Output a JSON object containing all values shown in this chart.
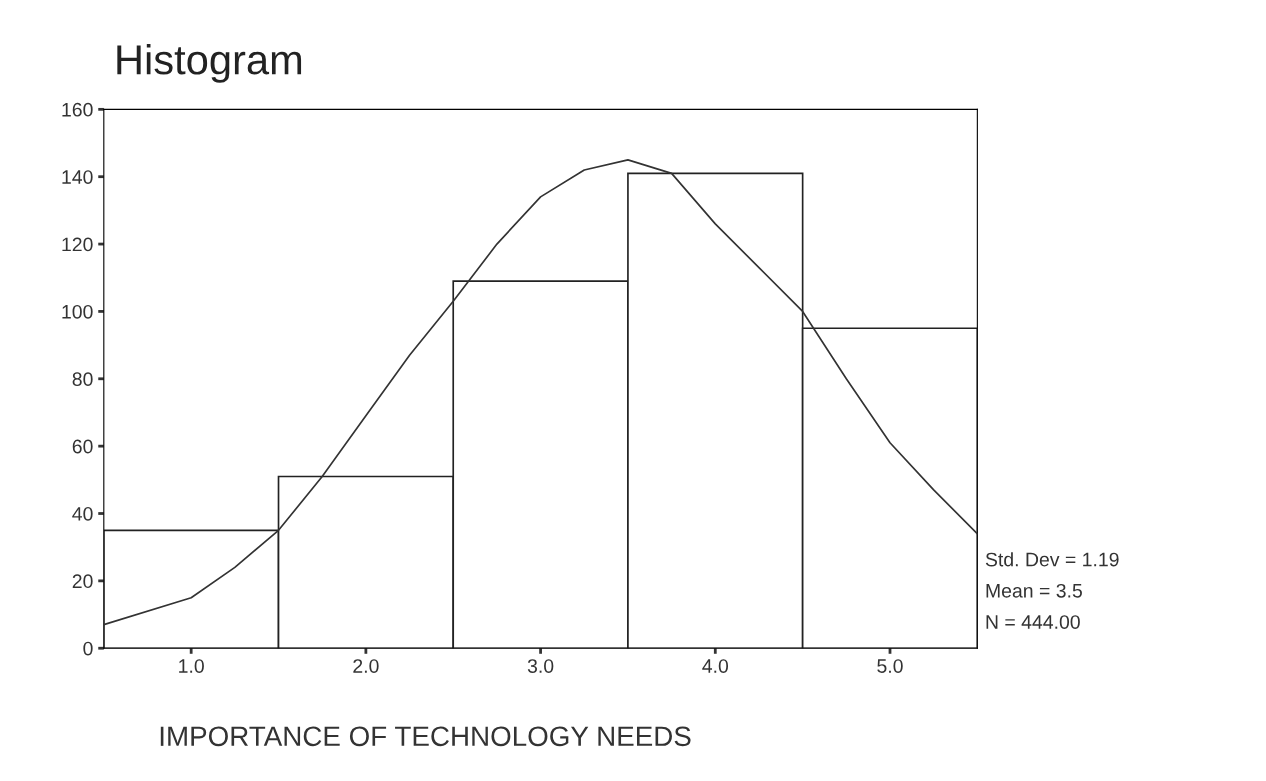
{
  "chart_data": {
    "type": "histogram",
    "title": "Histogram",
    "xlabel": "IMPORTANCE OF TECHNOLOGY NEEDS",
    "xlim": [
      0.5,
      5.5
    ],
    "xticks": [
      {
        "value": 1,
        "label": "1.0"
      },
      {
        "value": 2,
        "label": "2.0"
      },
      {
        "value": 3,
        "label": "3.0"
      },
      {
        "value": 4,
        "label": "4.0"
      },
      {
        "value": 5,
        "label": "5.0"
      }
    ],
    "ylim": [
      0,
      160
    ],
    "yticks": [
      0,
      20,
      40,
      60,
      80,
      100,
      120,
      140,
      160
    ],
    "series": [
      {
        "color": "#ffffff",
        "bins": [
          0.5,
          1.5,
          2.5,
          3.5,
          4.5,
          5.5
        ],
        "values": [
          35,
          51,
          109,
          141,
          95
        ]
      },
      {
        "type": "line",
        "color": "#333333",
        "x": [
          0.5,
          1.0,
          1.25,
          1.5,
          1.75,
          2.0,
          2.25,
          2.5,
          2.75,
          3.0,
          3.25,
          3.5,
          3.75,
          4.0,
          4.25,
          4.5,
          4.75,
          5.0,
          5.25,
          5.5
        ],
        "values": [
          7,
          15,
          24,
          35,
          51,
          69,
          87,
          103,
          120,
          134,
          142,
          145,
          141,
          126,
          113,
          100,
          80,
          61,
          47,
          34
        ]
      }
    ],
    "annotations": [
      "Std. Dev = 1.19",
      "Mean = 3.5",
      "N = 444.00"
    ]
  }
}
